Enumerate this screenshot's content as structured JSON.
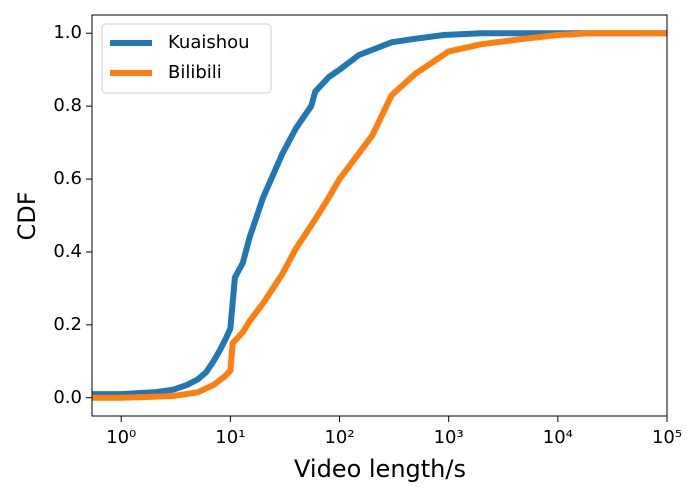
{
  "chart_data": {
    "type": "line",
    "xlabel": "Video length/s",
    "ylabel": "CDF",
    "xscale": "log",
    "xlim": [
      0.54,
      100000
    ],
    "ylim": [
      -0.05,
      1.05
    ],
    "xticks": [
      {
        "value": 1,
        "label": "10⁰"
      },
      {
        "value": 10,
        "label": "10¹"
      },
      {
        "value": 100,
        "label": "10²"
      },
      {
        "value": 1000,
        "label": "10³"
      },
      {
        "value": 10000,
        "label": "10⁴"
      },
      {
        "value": 100000,
        "label": "10⁵"
      }
    ],
    "yticks": [
      {
        "value": 0,
        "label": "0.0"
      },
      0.2,
      0.4,
      0.6,
      0.8,
      {
        "value": 1,
        "label": "1.0"
      }
    ],
    "legend": "upper left",
    "series": [
      {
        "name": "Kuaishou",
        "color": "#1f77b4",
        "x": [
          0.54,
          1,
          2,
          3,
          4,
          5,
          6,
          7,
          8,
          9,
          10,
          11,
          13,
          15,
          20,
          30,
          40,
          55,
          60,
          80,
          100,
          150,
          300,
          500,
          900,
          2000,
          100000
        ],
        "values": [
          0.01,
          0.01,
          0.015,
          0.022,
          0.035,
          0.05,
          0.07,
          0.1,
          0.13,
          0.16,
          0.19,
          0.33,
          0.37,
          0.44,
          0.55,
          0.67,
          0.74,
          0.8,
          0.84,
          0.88,
          0.9,
          0.94,
          0.975,
          0.985,
          0.995,
          1.0,
          1.0
        ]
      },
      {
        "name": "Bilibili",
        "color": "#ff7f0e",
        "x": [
          0.54,
          1,
          3,
          5,
          7,
          9,
          10,
          10.5,
          13,
          15,
          20,
          30,
          40,
          60,
          80,
          100,
          200,
          300,
          500,
          1000,
          2000,
          5000,
          10000,
          20000,
          100000
        ],
        "values": [
          0,
          0,
          0.005,
          0.015,
          0.035,
          0.06,
          0.075,
          0.15,
          0.18,
          0.21,
          0.26,
          0.34,
          0.41,
          0.49,
          0.55,
          0.6,
          0.72,
          0.83,
          0.89,
          0.95,
          0.97,
          0.985,
          0.995,
          1.0,
          1.0
        ]
      }
    ]
  }
}
